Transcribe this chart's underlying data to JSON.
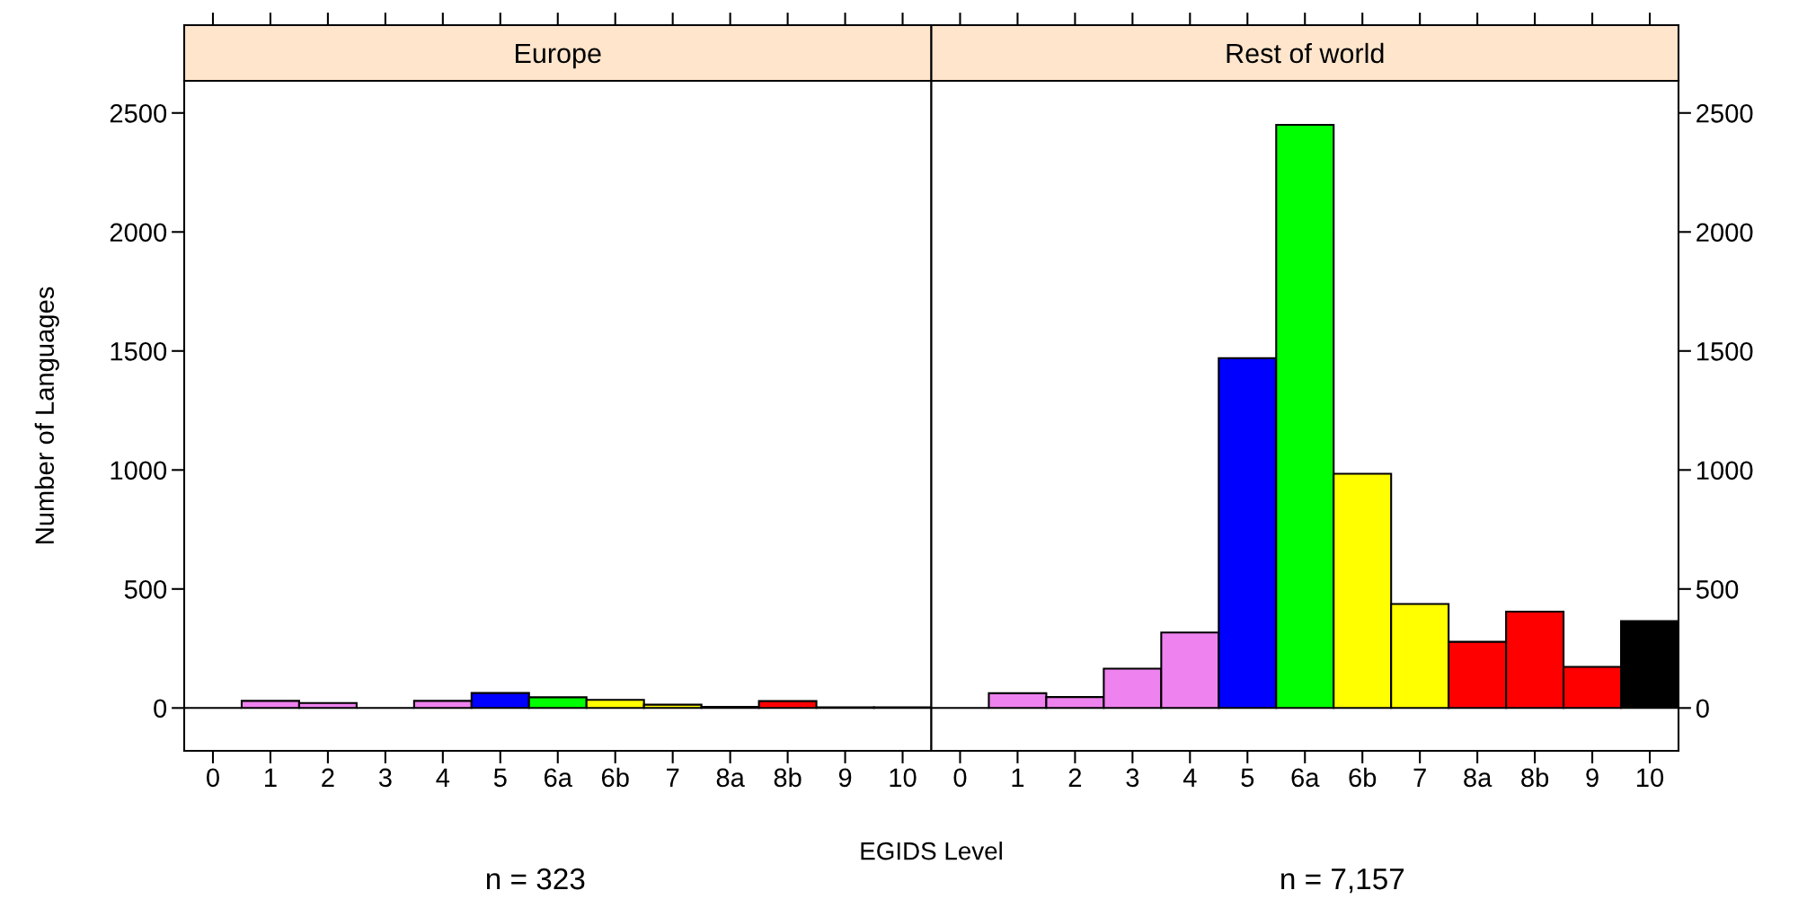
{
  "chart_data": [
    {
      "type": "bar",
      "title": "Europe",
      "xlabel": "EGIDS Level",
      "ylabel": "Number of Languages",
      "categories": [
        "0",
        "1",
        "2",
        "3",
        "4",
        "5",
        "6a",
        "6b",
        "7",
        "8a",
        "8b",
        "9",
        "10"
      ],
      "values": [
        0,
        30,
        21,
        0,
        30,
        63,
        45,
        34,
        14,
        5,
        29,
        3,
        3
      ],
      "colors": [
        "#000000",
        "#ee82ee",
        "#ee82ee",
        "#000000",
        "#ee82ee",
        "#0000ff",
        "#00ff00",
        "#ffff00",
        "#ffff00",
        "#ff0000",
        "#ff0000",
        "#ff0000",
        "#000000"
      ],
      "ylim": [
        -180,
        2635
      ],
      "yticks": [
        0,
        500,
        1000,
        1500,
        2000,
        2500
      ],
      "grid": false,
      "annotations": [
        "n = 323"
      ]
    },
    {
      "type": "bar",
      "title": "Rest of world",
      "categories": [
        "0",
        "1",
        "2",
        "3",
        "4",
        "5",
        "6a",
        "6b",
        "7",
        "8a",
        "8b",
        "9",
        "10"
      ],
      "values": [
        0,
        62,
        46,
        165,
        317,
        1470,
        2450,
        984,
        437,
        278,
        405,
        173,
        365
      ],
      "colors": [
        "#000000",
        "#ee82ee",
        "#ee82ee",
        "#ee82ee",
        "#ee82ee",
        "#0000ff",
        "#00ff00",
        "#ffff00",
        "#ffff00",
        "#ff0000",
        "#ff0000",
        "#ff0000",
        "#000000"
      ],
      "ylim": [
        -180,
        2635
      ],
      "yticks": [
        0,
        500,
        1000,
        1500,
        2000,
        2500
      ],
      "grid": false,
      "annotations": [
        "n = 7,157"
      ]
    }
  ]
}
